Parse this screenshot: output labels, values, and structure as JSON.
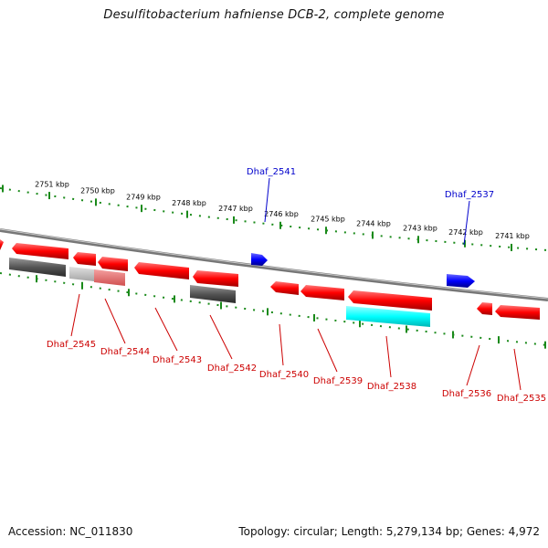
{
  "header": {
    "title": "Desulfitobacterium hafniense DCB-2, complete genome"
  },
  "footer": {
    "accession": "Accession: NC_011830",
    "summary": "Topology: circular; Length: 5,279,134 bp; Genes: 4,972"
  },
  "colors": {
    "forward_gene": "#ff0000",
    "selected_gene": "#0000ff",
    "hypothetical_gene": "#555555",
    "pseudo_gene": "#00ffff",
    "light_gene": "#bbbbbb",
    "pink_gene": "#e06060",
    "backbone": "#888888",
    "tick": "#1a8a1a",
    "label_forward": "#0000cc",
    "label_reverse": "#cc0000"
  },
  "ruler": {
    "upper_ticks": [
      "2751 kbp",
      "2750 kbp",
      "2749 kbp",
      "2748 kbp",
      "2747 kbp",
      "2746 kbp",
      "2745 kbp",
      "2744 kbp",
      "2743 kbp",
      "2742 kbp",
      "2741 kbp"
    ]
  },
  "genes": {
    "forward_labels": [
      "Dhaf_2541",
      "Dhaf_2537"
    ],
    "reverse_labels": [
      "Dhaf_2545",
      "Dhaf_2544",
      "Dhaf_2543",
      "Dhaf_2542",
      "Dhaf_2540",
      "Dhaf_2539",
      "Dhaf_2538",
      "Dhaf_2536",
      "Dhaf_2535"
    ]
  }
}
